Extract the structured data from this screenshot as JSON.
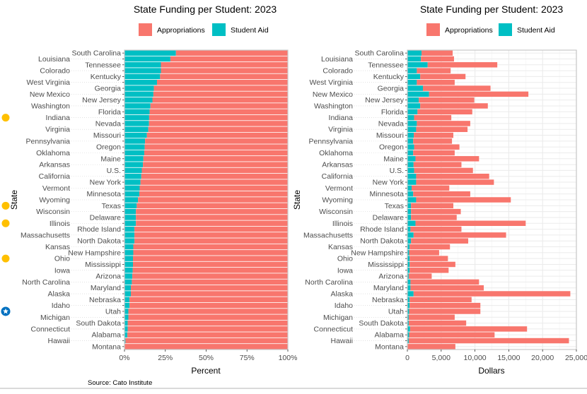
{
  "colors": {
    "appropriations": "#F8766D",
    "student_aid": "#00BFC4",
    "highlight_dot": "#FFC000",
    "highlight_star": "#0070C0"
  },
  "source": "Source: Cato Institute",
  "highlights": [
    {
      "state": "Indiana",
      "icon": "yellow-dot"
    },
    {
      "state": "Texas",
      "icon": "yellow-dot"
    },
    {
      "state": "Illinois",
      "icon": "yellow-dot"
    },
    {
      "state": "Ohio",
      "icon": "yellow-dot"
    },
    {
      "state": "Utah",
      "icon": "blue-star-badge"
    }
  ],
  "chart_data": [
    {
      "type": "bar",
      "orientation": "horizontal",
      "stacked": true,
      "title": "State Funding per Student: 2023",
      "xlabel": "Percent",
      "ylabel": "State",
      "xlim": [
        0,
        100
      ],
      "xticks": [
        "0%",
        "25%",
        "50%",
        "75%",
        "100%"
      ],
      "legend": "top",
      "grid": false,
      "categories": [
        "South Carolina",
        "Louisiana",
        "Tennessee",
        "Colorado",
        "Kentucky",
        "West Virginia",
        "Georgia",
        "New Mexico",
        "New Jersey",
        "Washington",
        "Florida",
        "Indiana",
        "Nevada",
        "Virginia",
        "Missouri",
        "Pennsylvania",
        "Oregon",
        "Oklahoma",
        "Maine",
        "Arkansas",
        "U.S.",
        "California",
        "New York",
        "Vermont",
        "Minnesota",
        "Wyoming",
        "Texas",
        "Wisconsin",
        "Delaware",
        "Illinois",
        "Rhode Island",
        "Massachusetts",
        "North Dakota",
        "Kansas",
        "New Hampshire",
        "Ohio",
        "Mississippi",
        "Iowa",
        "Arizona",
        "North Carolina",
        "Maryland",
        "Alaska",
        "Nebraska",
        "Idaho",
        "Utah",
        "Michigan",
        "South Dakota",
        "Connecticut",
        "Alabama",
        "Hawaii",
        "Montana"
      ],
      "series": [
        {
          "name": "Student Aid",
          "values": [
            31.5,
            28.1,
            22.3,
            22.3,
            21.8,
            19.9,
            18.0,
            17.7,
            17.1,
            15.9,
            15.4,
            15.1,
            15.0,
            14.6,
            13.7,
            12.6,
            12.4,
            12.1,
            11.6,
            11.3,
            10.6,
            10.3,
            9.8,
            9.3,
            9.1,
            8.3,
            7.5,
            7.0,
            7.0,
            7.0,
            6.1,
            6.1,
            6.1,
            5.4,
            5.4,
            5.2,
            5.2,
            5.0,
            4.8,
            4.5,
            3.9,
            3.9,
            3.1,
            3.1,
            2.4,
            2.4,
            2.0,
            2.0,
            1.8,
            0.6,
            0.2
          ]
        },
        {
          "name": "Appropriations",
          "values": [
            68.5,
            71.9,
            77.7,
            77.7,
            78.2,
            80.1,
            82.0,
            82.3,
            82.9,
            84.1,
            84.6,
            84.9,
            85.0,
            85.4,
            86.3,
            87.4,
            87.6,
            87.9,
            88.4,
            88.7,
            89.4,
            89.7,
            90.2,
            90.7,
            90.9,
            91.7,
            92.5,
            93.0,
            93.0,
            93.0,
            93.9,
            93.9,
            93.9,
            94.6,
            94.6,
            94.8,
            94.8,
            95.0,
            95.2,
            95.5,
            96.1,
            96.1,
            96.9,
            96.9,
            97.6,
            97.6,
            98.0,
            98.0,
            98.2,
            99.4,
            99.8
          ]
        }
      ]
    },
    {
      "type": "bar",
      "orientation": "horizontal",
      "stacked": true,
      "title": "State Funding per Student: 2023",
      "xlabel": "Dollars",
      "ylabel": "State",
      "xlim": [
        0,
        25000
      ],
      "xticks": [
        "0",
        "5,000",
        "10,000",
        "15,000",
        "20,000",
        "25,000"
      ],
      "legend": "top",
      "grid": true,
      "categories": [
        "South Carolina",
        "Louisiana",
        "Tennessee",
        "Colorado",
        "Kentucky",
        "West Virginia",
        "Georgia",
        "New Mexico",
        "New Jersey",
        "Washington",
        "Florida",
        "Indiana",
        "Nevada",
        "Virginia",
        "Missouri",
        "Pennsylvania",
        "Oregon",
        "Oklahoma",
        "Maine",
        "Arkansas",
        "U.S.",
        "California",
        "New York",
        "Vermont",
        "Minnesota",
        "Wyoming",
        "Texas",
        "Wisconsin",
        "Delaware",
        "Illinois",
        "Rhode Island",
        "Massachusetts",
        "North Dakota",
        "Kansas",
        "New Hampshire",
        "Ohio",
        "Mississippi",
        "Iowa",
        "Arizona",
        "North Carolina",
        "Maryland",
        "Alaska",
        "Nebraska",
        "Idaho",
        "Utah",
        "Michigan",
        "South Dakota",
        "Connecticut",
        "Alabama",
        "Hawaii",
        "Montana"
      ],
      "series": [
        {
          "name": "Student Aid",
          "values": [
            2100,
            2000,
            3000,
            1400,
            1900,
            1400,
            2300,
            3200,
            1700,
            1900,
            1500,
            1000,
            1400,
            1300,
            950,
            860,
            1000,
            860,
            1200,
            920,
            1000,
            1300,
            1300,
            630,
            860,
            1300,
            540,
            540,
            540,
            1200,
            460,
            920,
            540,
            340,
            260,
            340,
            340,
            340,
            200,
            460,
            460,
            920,
            340,
            340,
            260,
            200,
            200,
            400,
            260,
            200,
            30
          ]
        },
        {
          "name": "Appropriations",
          "values": [
            4600,
            4900,
            10300,
            5000,
            6700,
            5600,
            10000,
            14700,
            8200,
            10000,
            8100,
            5500,
            7900,
            7600,
            5850,
            5740,
            6700,
            6140,
            9400,
            7080,
            8700,
            10800,
            11500,
            5570,
            8440,
            14000,
            6260,
            7360,
            6760,
            16300,
            7540,
            13680,
            8460,
            5960,
            4440,
            5660,
            6760,
            5760,
            3400,
            10140,
            10840,
            23180,
            9160,
            10460,
            10540,
            6800,
            8500,
            17300,
            12640,
            23700,
            7070
          ]
        }
      ]
    }
  ]
}
